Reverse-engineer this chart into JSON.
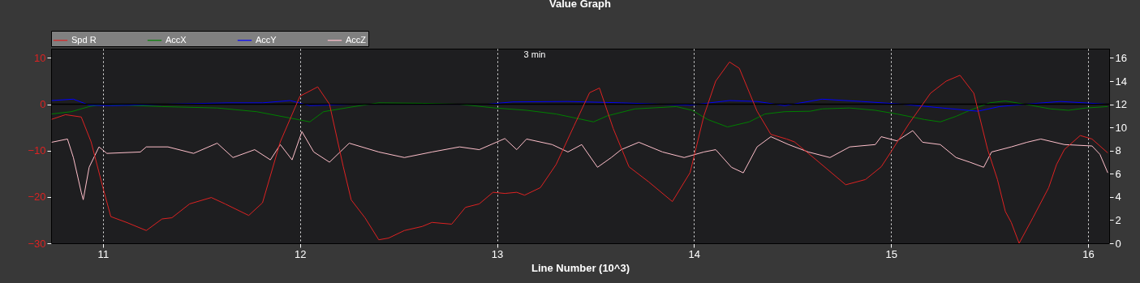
{
  "chart_data": {
    "type": "line",
    "title": "Value Graph",
    "xlabel": "Line Number (10^3)",
    "xlim": [
      10.737,
      16.107
    ],
    "xticks": [
      11,
      12,
      13,
      14,
      15,
      16
    ],
    "ylim": [
      -30,
      12
    ],
    "yticks": [
      -30,
      -20,
      -10,
      0,
      10
    ],
    "y2lim": [
      0,
      16.8
    ],
    "y2ticks": [
      0,
      2,
      4,
      6,
      8,
      10,
      12,
      14,
      16
    ],
    "grid": "x",
    "legend": "top left",
    "line_style": "solid",
    "annotations": [
      "3 min"
    ],
    "ref_lines": [
      {
        "axis": "y",
        "value": 0,
        "color": "#000000"
      }
    ],
    "series": [
      {
        "name": "Spd R",
        "color": "#dd2222",
        "axis": "y2",
        "x": [
          10.74,
          10.81,
          10.89,
          10.94,
          11.0,
          11.04,
          11.12,
          11.22,
          11.3,
          11.35,
          11.44,
          11.55,
          11.62,
          11.74,
          11.81,
          11.9,
          12.0,
          12.09,
          12.15,
          12.22,
          12.26,
          12.33,
          12.4,
          12.45,
          12.53,
          12.62,
          12.67,
          12.77,
          12.84,
          12.91,
          12.98,
          13.04,
          13.1,
          13.14,
          13.22,
          13.3,
          13.39,
          13.47,
          13.52,
          13.59,
          13.67,
          13.77,
          13.89,
          13.98,
          14.05,
          14.11,
          14.18,
          14.23,
          14.32,
          14.39,
          14.47,
          14.51,
          14.62,
          14.77,
          14.87,
          14.95,
          15.0,
          15.09,
          15.2,
          15.28,
          15.35,
          15.42,
          15.49,
          15.54,
          15.58,
          15.61,
          15.65,
          15.72,
          15.8,
          15.84,
          15.88,
          15.96,
          16.02,
          16.1
        ],
        "values": [
          10.7,
          11.1,
          10.9,
          8.75,
          4.8,
          2.3,
          1.8,
          1.1,
          2.1,
          2.2,
          3.4,
          3.95,
          3.4,
          2.4,
          3.5,
          8.75,
          12.7,
          13.5,
          12.0,
          6.6,
          3.75,
          2.2,
          0.3,
          0.45,
          1.1,
          1.45,
          1.8,
          1.65,
          3.1,
          3.4,
          4.4,
          4.3,
          4.4,
          4.15,
          4.8,
          6.8,
          10.1,
          13.0,
          13.4,
          9.9,
          6.6,
          5.3,
          3.6,
          6.1,
          11.0,
          14.0,
          15.65,
          15.1,
          11.4,
          9.4,
          9.0,
          8.75,
          7.2,
          5.05,
          5.5,
          6.6,
          7.9,
          10.3,
          12.95,
          14.0,
          14.5,
          12.95,
          8.1,
          5.5,
          2.75,
          1.8,
          0,
          2.2,
          4.8,
          6.8,
          8.1,
          9.3,
          9.0,
          7.8
        ]
      },
      {
        "name": "AccX",
        "color": "#008000",
        "x": [
          10.74,
          10.84,
          10.93,
          11.0,
          11.3,
          11.58,
          11.78,
          11.99,
          12.05,
          12.12,
          12.26,
          12.4,
          12.62,
          12.81,
          12.99,
          13.15,
          13.3,
          13.49,
          13.56,
          13.7,
          13.91,
          13.99,
          14.07,
          14.17,
          14.28,
          14.36,
          14.46,
          14.59,
          14.65,
          14.79,
          14.92,
          15.03,
          15.17,
          15.25,
          15.33,
          15.4,
          15.5,
          15.58,
          15.68,
          15.81,
          15.9,
          15.99,
          16.1
        ],
        "values": [
          -2.1,
          -1.6,
          -0.5,
          0,
          -0.5,
          -0.8,
          -1.6,
          -3.3,
          -3.8,
          -1.6,
          -0.6,
          0.3,
          0.2,
          0,
          -0.8,
          -1.3,
          -2.1,
          -3.8,
          -2.5,
          -1.0,
          -0.5,
          -1.3,
          -3.3,
          -4.9,
          -3.8,
          -2.1,
          -1.6,
          -1.5,
          -1.0,
          -0.8,
          -1.3,
          -2.1,
          -3.3,
          -3.8,
          -2.6,
          -1.3,
          0.3,
          0.7,
          0,
          -1.0,
          -1.3,
          -0.8,
          -0.5
        ]
      },
      {
        "name": "AccY",
        "color": "#0000ff",
        "x": [
          10.74,
          10.85,
          10.93,
          11.04,
          11.3,
          11.64,
          11.81,
          11.95,
          12.05,
          12.26,
          12.95,
          13.08,
          13.36,
          13.63,
          13.84,
          13.98,
          14.18,
          14.32,
          14.46,
          14.65,
          14.85,
          15.06,
          15.26,
          15.44,
          15.55,
          15.68,
          15.86,
          16.1
        ],
        "values": [
          0.8,
          1.1,
          -0.2,
          -0.3,
          0,
          0.3,
          0.3,
          0.8,
          -0.3,
          0,
          0,
          0.5,
          0.6,
          0.3,
          0,
          -0.2,
          0.8,
          0.6,
          -0.3,
          1.1,
          0.6,
          0,
          -0.8,
          -1.5,
          -0.5,
          0,
          0.6,
          0
        ]
      },
      {
        "name": "AccZ",
        "color": "#ffc0cb",
        "x": [
          10.74,
          10.82,
          10.85,
          10.89,
          10.9,
          10.93,
          10.98,
          11.02,
          11.19,
          11.22,
          11.33,
          11.46,
          11.58,
          11.66,
          11.77,
          11.85,
          11.9,
          11.96,
          12.01,
          12.07,
          12.15,
          12.25,
          12.4,
          12.53,
          12.67,
          12.81,
          12.91,
          13.04,
          13.1,
          13.15,
          13.28,
          13.36,
          13.43,
          13.51,
          13.58,
          13.63,
          13.72,
          13.84,
          13.95,
          14.05,
          14.11,
          14.19,
          14.25,
          14.32,
          14.39,
          14.48,
          14.58,
          14.69,
          14.79,
          14.92,
          14.95,
          15.03,
          15.11,
          15.16,
          15.25,
          15.33,
          15.4,
          15.47,
          15.51,
          15.61,
          15.69,
          15.76,
          15.88,
          16.02,
          16.06,
          16.1
        ],
        "values": [
          -8.2,
          -7.5,
          -11.5,
          -19.0,
          -20.6,
          -13.6,
          -9.2,
          -10.6,
          -10.3,
          -9.2,
          -9.2,
          -10.6,
          -8.4,
          -11.5,
          -9.8,
          -12.0,
          -8.7,
          -12.0,
          -5.9,
          -10.3,
          -12.5,
          -8.4,
          -10.3,
          -11.5,
          -10.3,
          -9.2,
          -9.8,
          -7.4,
          -9.8,
          -7.5,
          -8.7,
          -10.3,
          -8.7,
          -13.6,
          -11.5,
          -9.8,
          -8.2,
          -10.3,
          -11.5,
          -10.3,
          -9.8,
          -13.6,
          -14.8,
          -9.2,
          -7.0,
          -8.7,
          -10.3,
          -11.5,
          -9.2,
          -8.7,
          -7.0,
          -7.9,
          -5.7,
          -8.2,
          -8.7,
          -11.5,
          -12.5,
          -13.6,
          -10.3,
          -9.2,
          -8.2,
          -7.5,
          -8.7,
          -9.0,
          -10.8,
          -14.8
        ]
      }
    ]
  }
}
